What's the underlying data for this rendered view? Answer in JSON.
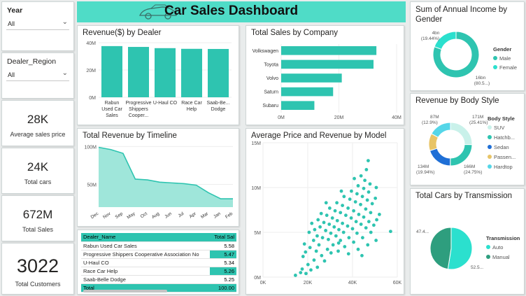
{
  "dashboard": {
    "title": "Car Sales Dashboard",
    "accent": "#2ec4b0"
  },
  "filters": {
    "year": {
      "label": "Year",
      "value": "All"
    },
    "region": {
      "label": "Dealer_Region",
      "value": "All"
    }
  },
  "kpis": [
    {
      "value": "28K",
      "label": "Average sales price"
    },
    {
      "value": "24K",
      "label": "Total cars"
    },
    {
      "value": "672M",
      "label": "Total Sales"
    },
    {
      "value": "3022",
      "label": "Total Customers"
    }
  ],
  "table": {
    "headers": [
      "Dealer_Name",
      "Total Sal"
    ],
    "rows": [
      [
        "Rabun Used Car Sales",
        "5.58"
      ],
      [
        "Progressive Shippers Cooperative Association No",
        "5.47"
      ],
      [
        "U-Haul CO",
        "5.34"
      ],
      [
        "Race Car Help",
        "5.26"
      ],
      [
        "Saab-Belle Dodge",
        "5.25"
      ]
    ],
    "total": [
      "Total",
      "100.00"
    ]
  },
  "chart_data": [
    {
      "type": "bar",
      "title": "Revenue($) by Dealer",
      "categories": [
        "Rabun Used Car Sales",
        "Progressive Shippers Cooper...",
        "U-Haul CO",
        "Race Car Help",
        "Saab-Be... Dodge"
      ],
      "values": [
        37.5,
        36.9,
        36.0,
        35.5,
        35.4
      ],
      "ylim": [
        0,
        40
      ],
      "yticks": [
        "0M",
        "20M",
        "40M"
      ],
      "color": "#2ec4b0"
    },
    {
      "type": "bar",
      "orientation": "horizontal",
      "title": "Total Sales by Company",
      "categories": [
        "Volkswagen",
        "Toyota",
        "Volvo",
        "Saturn",
        "Subaru"
      ],
      "values": [
        33.0,
        32.0,
        21.0,
        18.0,
        11.5
      ],
      "xlim": [
        0,
        40
      ],
      "xticks": [
        "0M",
        "20M",
        "40M"
      ],
      "color": "#2ec4b0"
    },
    {
      "type": "pie",
      "title": "Sum of Annual Income by Gender",
      "legend_title": "Gender",
      "labels": [
        "Male",
        "Female"
      ],
      "values": [
        80.56,
        19.44
      ],
      "display_labels": [
        "16bn (80.5...)",
        "4bn (19.44%)"
      ],
      "colors": [
        "#2ec4b0",
        "#2be0ce"
      ]
    },
    {
      "type": "pie",
      "title": "Revenue by Body Style",
      "legend_title": "Body Style",
      "labels": [
        "SUV",
        "Hatchb...",
        "Sedan",
        "Passen...",
        "Hardtop"
      ],
      "values": [
        25.41,
        24.75,
        19.94,
        12.9,
        17.0
      ],
      "display_labels": [
        "171M (25.41%)",
        "166M (24.75%)",
        "134M (19.94%)",
        "87M (12.9%)",
        ""
      ],
      "colors": [
        "#c9f1ea",
        "#2ec4b0",
        "#1f6fd6",
        "#e8c466",
        "#55d6e8"
      ]
    },
    {
      "type": "pie",
      "title": "Total Cars by Transmission",
      "legend_title": "Transmission",
      "labels": [
        "Auto",
        "Manual"
      ],
      "values": [
        52.5,
        47.5
      ],
      "display_labels": [
        "52.5...",
        "47.4..."
      ],
      "colors": [
        "#2be0ce",
        "#2e9e7e"
      ]
    },
    {
      "type": "area",
      "title": "Total Revenue by Timeline",
      "categories": [
        "Dec",
        "Nov",
        "Sep",
        "May",
        "Oct",
        "Aug",
        "Jun",
        "Jul",
        "Apr",
        "Mar",
        "Jan",
        "Feb"
      ],
      "values": [
        99,
        96,
        91,
        57,
        56,
        53,
        52,
        51,
        49,
        39,
        31,
        31
      ],
      "ylim": [
        20,
        105
      ],
      "yticks": [
        {
          "v": 100,
          "label": "100M"
        },
        {
          "v": 50,
          "label": "50M"
        }
      ],
      "color": "#2ec4b0"
    },
    {
      "type": "scatter",
      "title": "Average Price and Revenue by Model",
      "xlim": [
        0,
        60
      ],
      "ylim": [
        0,
        15
      ],
      "xticks": [
        "0K",
        "20K",
        "40K",
        "60K"
      ],
      "yticks": [
        "0M",
        "5M",
        "10M",
        "15M"
      ],
      "color": "#2ec4b0",
      "points": [
        [
          14.5,
          0.2
        ],
        [
          16.8,
          0.5
        ],
        [
          17.5,
          0.9
        ],
        [
          19.2,
          0.4
        ],
        [
          20.1,
          1.4
        ],
        [
          21.4,
          0.8
        ],
        [
          22.8,
          1.9
        ],
        [
          17.9,
          2.3
        ],
        [
          24.3,
          1.1
        ],
        [
          19.0,
          2.8
        ],
        [
          26.2,
          2.4
        ],
        [
          23.8,
          2.9
        ],
        [
          21.0,
          3.3
        ],
        [
          25.0,
          3.6
        ],
        [
          27.5,
          1.8
        ],
        [
          28.8,
          3.1
        ],
        [
          30.4,
          2.7
        ],
        [
          18.5,
          3.7
        ],
        [
          22.6,
          4.1
        ],
        [
          24.2,
          4.6
        ],
        [
          26.6,
          4.4
        ],
        [
          29.2,
          4.2
        ],
        [
          31.3,
          3.6
        ],
        [
          33.6,
          2.9
        ],
        [
          20.6,
          5.0
        ],
        [
          23.1,
          5.3
        ],
        [
          25.5,
          5.6
        ],
        [
          28.0,
          5.2
        ],
        [
          30.3,
          4.9
        ],
        [
          32.6,
          4.6
        ],
        [
          34.6,
          4.1
        ],
        [
          36.5,
          3.4
        ],
        [
          21.8,
          6.0
        ],
        [
          24.6,
          6.4
        ],
        [
          27.2,
          6.1
        ],
        [
          29.6,
          5.9
        ],
        [
          31.8,
          5.6
        ],
        [
          33.9,
          5.3
        ],
        [
          36.0,
          5.0
        ],
        [
          38.4,
          4.4
        ],
        [
          40.5,
          3.9
        ],
        [
          42.5,
          3.1
        ],
        [
          26.0,
          7.1
        ],
        [
          28.5,
          6.9
        ],
        [
          31.0,
          6.6
        ],
        [
          33.2,
          6.3
        ],
        [
          35.5,
          6.0
        ],
        [
          37.8,
          5.7
        ],
        [
          40.0,
          5.4
        ],
        [
          42.0,
          4.9
        ],
        [
          44.5,
          4.4
        ],
        [
          46.8,
          3.6
        ],
        [
          29.8,
          7.7
        ],
        [
          32.2,
          7.4
        ],
        [
          34.6,
          7.2
        ],
        [
          37.0,
          6.9
        ],
        [
          39.4,
          6.6
        ],
        [
          41.6,
          6.2
        ],
        [
          43.8,
          5.9
        ],
        [
          46.0,
          5.5
        ],
        [
          48.2,
          5.0
        ],
        [
          50.5,
          4.1
        ],
        [
          33.0,
          8.3
        ],
        [
          35.5,
          8.0
        ],
        [
          38.0,
          7.7
        ],
        [
          40.5,
          7.4
        ],
        [
          42.8,
          7.0
        ],
        [
          45.0,
          6.7
        ],
        [
          47.3,
          6.2
        ],
        [
          49.5,
          5.8
        ],
        [
          36.2,
          9.0
        ],
        [
          38.8,
          8.7
        ],
        [
          41.3,
          8.4
        ],
        [
          43.6,
          8.1
        ],
        [
          45.9,
          7.6
        ],
        [
          48.1,
          7.2
        ],
        [
          50.8,
          6.4
        ],
        [
          39.5,
          9.6
        ],
        [
          42.0,
          9.3
        ],
        [
          44.4,
          9.0
        ],
        [
          46.6,
          8.6
        ],
        [
          48.8,
          8.2
        ],
        [
          42.5,
          10.2
        ],
        [
          45.0,
          9.9
        ],
        [
          47.2,
          9.5
        ],
        [
          45.5,
          10.8
        ],
        [
          47.8,
          10.4
        ],
        [
          43.8,
          11.3
        ],
        [
          50.2,
          8.8
        ],
        [
          52.0,
          7.0
        ],
        [
          33.8,
          3.8
        ],
        [
          38.2,
          2.6
        ],
        [
          44.2,
          2.4
        ],
        [
          28.2,
          8.3
        ],
        [
          35.0,
          9.6
        ],
        [
          40.8,
          11.0
        ],
        [
          46.2,
          12.0
        ],
        [
          50.6,
          10.0
        ],
        [
          47.0,
          13.0
        ],
        [
          57.0,
          5.1
        ]
      ]
    }
  ]
}
